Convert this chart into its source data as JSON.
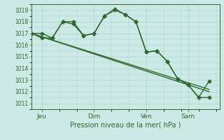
{
  "bg_color": "#cce9e5",
  "grid_color": "#aad4ce",
  "line_color": "#2d6a2d",
  "xlabel": "Pression niveau de la mer( hPa )",
  "yticks": [
    1011,
    1012,
    1013,
    1014,
    1015,
    1016,
    1017,
    1018,
    1019
  ],
  "ylim": [
    1010.5,
    1019.5
  ],
  "xtick_labels": [
    "Jeu",
    "Dim",
    "Ven",
    "Sam"
  ],
  "xtick_positions": [
    0.5,
    3.0,
    5.5,
    7.5
  ],
  "xlim": [
    0.0,
    9.0
  ],
  "series1_x": [
    0.0,
    0.5,
    1.0,
    1.5,
    2.0,
    2.5,
    3.0,
    3.5,
    4.0,
    4.5,
    5.0,
    5.5,
    6.0,
    6.5,
    7.0,
    7.5,
    8.0,
    8.5
  ],
  "series1_y": [
    1017.0,
    1017.0,
    1016.6,
    1018.0,
    1018.0,
    1016.8,
    1017.0,
    1018.5,
    1019.1,
    1018.6,
    1018.0,
    1015.4,
    1015.5,
    1014.6,
    1013.1,
    1012.6,
    1011.5,
    1011.5
  ],
  "series2_x": [
    0.0,
    0.5,
    1.0,
    1.5,
    2.0,
    2.5,
    3.0,
    3.5,
    4.0,
    4.5,
    5.0,
    5.5,
    6.0,
    6.5,
    7.0,
    7.5,
    8.0,
    8.5
  ],
  "series2_y": [
    1017.0,
    1016.6,
    1016.6,
    1018.0,
    1017.8,
    1016.8,
    1017.0,
    1018.5,
    1019.0,
    1018.6,
    1018.0,
    1015.4,
    1015.5,
    1014.6,
    1013.1,
    1012.6,
    1011.5,
    1012.9
  ],
  "series3_x": [
    0.0,
    8.5
  ],
  "series3_y": [
    1017.0,
    1012.2
  ],
  "series4_x": [
    0.0,
    8.5
  ],
  "series4_y": [
    1017.0,
    1012.0
  ],
  "marker": "D",
  "marker_size": 2.5,
  "line_width": 1.0
}
